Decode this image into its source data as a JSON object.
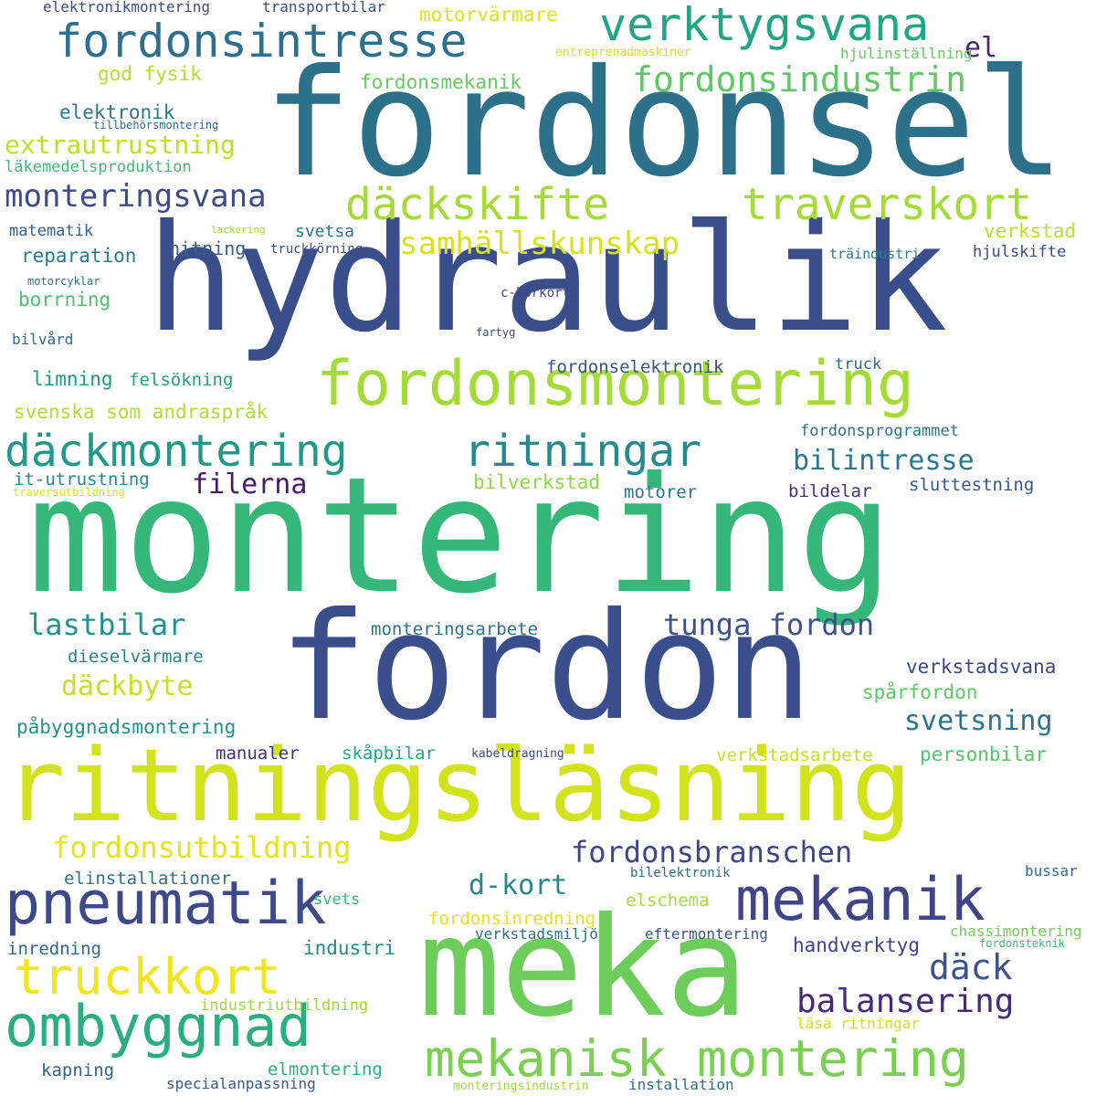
{
  "words": [
    {
      "text": "fordonsel",
      "color": "#2d7089"
    },
    {
      "text": "hydraulik",
      "color": "#3b4e8c"
    },
    {
      "text": "montering",
      "color": "#35b779"
    },
    {
      "text": "fordon",
      "color": "#3b4e8c"
    },
    {
      "text": "ritningsläsning",
      "color": "#d2e21b"
    },
    {
      "text": "meka",
      "color": "#6ccd5a"
    },
    {
      "text": "fordonsmontering",
      "color": "#a5db36"
    },
    {
      "text": "verktygsvana",
      "color": "#21a685"
    },
    {
      "text": "fordonsintresse",
      "color": "#2d6f8e"
    },
    {
      "text": "däckmontering",
      "color": "#1f9a8a"
    },
    {
      "text": "ritningar",
      "color": "#238a8d"
    },
    {
      "text": "däckskifte",
      "color": "#a5db36"
    },
    {
      "text": "traverskort",
      "color": "#a5db36"
    },
    {
      "text": "pneumatik",
      "color": "#3e4989"
    },
    {
      "text": "mekanik",
      "color": "#414487"
    },
    {
      "text": "truckkort",
      "color": "#f1e51d"
    },
    {
      "text": "ombyggnad",
      "color": "#28ae80"
    },
    {
      "text": "mekanisk montering",
      "color": "#7ad151"
    },
    {
      "text": "fordonsindustrin",
      "color": "#5ec962"
    },
    {
      "text": "monteringsvana",
      "color": "#3e4a89"
    },
    {
      "text": "samhällskunskap",
      "color": "#d8e219"
    },
    {
      "text": "fordonsutbildning",
      "color": "#e5e419"
    },
    {
      "text": "fordonsbranschen",
      "color": "#404688"
    },
    {
      "text": "lastbilar",
      "color": "#1f948c"
    },
    {
      "text": "tunga fordon",
      "color": "#3b528b"
    },
    {
      "text": "däckbyte",
      "color": "#c8e020"
    },
    {
      "text": "bilintresse",
      "color": "#2a788e"
    },
    {
      "text": "extrautrustning",
      "color": "#c2df23"
    },
    {
      "text": "filerna",
      "color": "#481a6c"
    },
    {
      "text": "balansering",
      "color": "#482878"
    },
    {
      "text": "däck",
      "color": "#3b528b"
    },
    {
      "text": "svetsning",
      "color": "#2c728e"
    },
    {
      "text": "d-kort",
      "color": "#24868e"
    },
    {
      "text": "el",
      "color": "#482475"
    },
    {
      "text": "motorvärmare",
      "color": "#dde318"
    },
    {
      "text": "god fysik",
      "color": "#b5de2b"
    },
    {
      "text": "fordonsmekanik",
      "color": "#65cb5e"
    },
    {
      "text": "elektronik",
      "color": "#2a788e"
    },
    {
      "text": "läkemedelsproduktion",
      "color": "#3dbc74"
    },
    {
      "text": "matematik",
      "color": "#33628d"
    },
    {
      "text": "reparation",
      "color": "#287d8e"
    },
    {
      "text": "borrning",
      "color": "#4ac16d"
    },
    {
      "text": "nitning",
      "color": "#355f8d"
    },
    {
      "text": "svetsa",
      "color": "#2a788e"
    },
    {
      "text": "truckkörning",
      "color": "#3e4c8a"
    },
    {
      "text": "verkstad",
      "color": "#bddf26"
    },
    {
      "text": "hjulskifte",
      "color": "#3e4989"
    },
    {
      "text": "träindustri",
      "color": "#287c8e"
    },
    {
      "text": "c-körkort",
      "color": "#3f4788"
    },
    {
      "text": "fartyg",
      "color": "#3f4889"
    },
    {
      "text": "motorcyklar",
      "color": "#2e6f8e"
    },
    {
      "text": "lackering",
      "color": "#a0da39"
    },
    {
      "text": "bilvård",
      "color": "#2f6b8e"
    },
    {
      "text": "limning",
      "color": "#1f998a"
    },
    {
      "text": "felsökning",
      "color": "#1fa187"
    },
    {
      "text": "fordonselektronik",
      "color": "#3a548c"
    },
    {
      "text": "truck",
      "color": "#31688e"
    },
    {
      "text": "svenska som andraspråk",
      "color": "#b0dd2f"
    },
    {
      "text": "fordonsprogrammet",
      "color": "#2c728e"
    },
    {
      "text": "it-utrustning",
      "color": "#228c8d"
    },
    {
      "text": "traversutbildning",
      "color": "#d8e219"
    },
    {
      "text": "bilverkstad",
      "color": "#90d743"
    },
    {
      "text": "motorer",
      "color": "#2a768e"
    },
    {
      "text": "bildelar",
      "color": "#46327e"
    },
    {
      "text": "sluttestning",
      "color": "#39568c"
    },
    {
      "text": "monteringsarbete",
      "color": "#2c738e"
    },
    {
      "text": "dieselvärmare",
      "color": "#25858e"
    },
    {
      "text": "verkstadsvana",
      "color": "#3f4788"
    },
    {
      "text": "spårfordon",
      "color": "#5ec962"
    },
    {
      "text": "påbyggnadsmontering",
      "color": "#1f958b"
    },
    {
      "text": "manualer",
      "color": "#472d7b"
    },
    {
      "text": "skåpbilar",
      "color": "#22a884"
    },
    {
      "text": "kabeldragning",
      "color": "#3f4889"
    },
    {
      "text": "verkstadsarbete",
      "color": "#c5e021"
    },
    {
      "text": "personbilar",
      "color": "#52c569"
    },
    {
      "text": "elinstallationer",
      "color": "#2c718e"
    },
    {
      "text": "svets",
      "color": "#37b878"
    },
    {
      "text": "industri",
      "color": "#238a8d"
    },
    {
      "text": "inredning",
      "color": "#31688e"
    },
    {
      "text": "fordonsinredning",
      "color": "#e2e418"
    },
    {
      "text": "elschema",
      "color": "#a8db34"
    },
    {
      "text": "bilelektronik",
      "color": "#2f6c8e"
    },
    {
      "text": "bussar",
      "color": "#2d708e"
    },
    {
      "text": "verkstadsmiljö",
      "color": "#2c718e"
    },
    {
      "text": "eftermontering",
      "color": "#3b518b"
    },
    {
      "text": "chassimontering",
      "color": "#6ece58"
    },
    {
      "text": "fordonsteknik",
      "color": "#3bbb75"
    },
    {
      "text": "handverktyg",
      "color": "#414287"
    },
    {
      "text": "industriutbildning",
      "color": "#9fda3a"
    },
    {
      "text": "läsa ritningar",
      "color": "#d0e11c"
    },
    {
      "text": "kapning",
      "color": "#33638d"
    },
    {
      "text": "elmontering",
      "color": "#29af7f"
    },
    {
      "text": "specialanpassning",
      "color": "#38588c"
    },
    {
      "text": "monteringsindustrin",
      "color": "#9dd93b"
    },
    {
      "text": "installation",
      "color": "#2e6e8e"
    },
    {
      "text": "elektronikmontering",
      "color": "#3e4c8a"
    },
    {
      "text": "transportbilar",
      "color": "#3c508b"
    },
    {
      "text": "entreprenadmaskiner",
      "color": "#d5e21a"
    },
    {
      "text": "hjulinställning",
      "color": "#63cb5f"
    },
    {
      "text": "tillbehörsmontering",
      "color": "#2f6b8e"
    }
  ]
}
